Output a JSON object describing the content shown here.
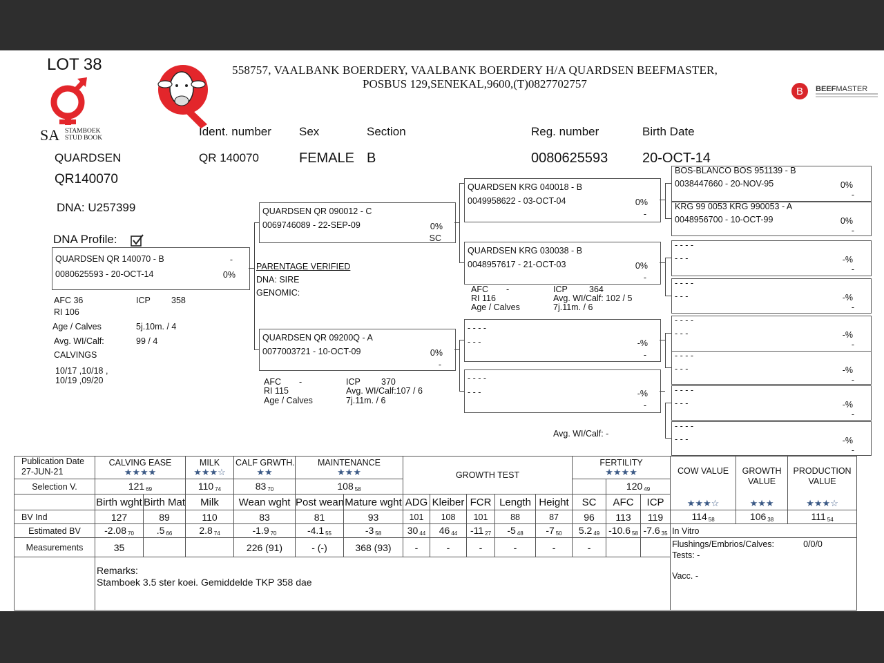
{
  "lot": "LOT 38",
  "logos": {
    "studbook": {
      "sa": "SA",
      "line1": "STAMBOEK",
      "line2": "STUD BOOK",
      "icon": "stud-book-symbol"
    },
    "breeder": {
      "letter": "Q",
      "icon": "cow-head"
    },
    "beefmaster": {
      "letter": "B",
      "text": "BEEFMASTER",
      "subtext": "CATTLE BREEDERS' SOCIETY OF SA"
    }
  },
  "breeder_header": {
    "line1": "558757,  VAALBANK BOERDERY, VAALBANK BOERDERY H/A QUARDSEN BEEFMASTER,",
    "line2": "POSBUS 129,SENEKAL,9600,(T)0827702757"
  },
  "animal": {
    "labels": {
      "ident": "Ident. number",
      "sex": "Sex",
      "section": "Section",
      "reg": "Reg. number",
      "birth": "Birth Date"
    },
    "prefix": "QUARDSEN",
    "name_code": "QR140070",
    "ident": "QR  140070",
    "sex": "FEMALE",
    "section": "B",
    "reg": "0080625593",
    "birth": "20-OCT-14",
    "dna": "DNA: U257399",
    "dna_profile_label": "DNA Profile:",
    "dna_profile_checked": true
  },
  "animal_info": {
    "afc": "AFC 36",
    "icp_label": "ICP",
    "icp": "358",
    "ri": "RI  106",
    "age_label": "Age / Calves",
    "age": "5j.10m. / 4",
    "wi_label": "Avg. WI/Calf:",
    "wi": "99 / 4",
    "calvings_label": "CALVINGS",
    "calvings1": "10/17 ,10/18 ,",
    "calvings2": "10/19 ,09/20"
  },
  "parentage": {
    "verified": "PARENTAGE VERIFIED",
    "dna": "DNA:  SIRE",
    "genomic": "GENOMIC:"
  },
  "pedigree": {
    "self": {
      "name": "QUARDSEN QR  140070 - B",
      "reg": "0080625593 -  20-OCT-14",
      "pct": "0%",
      "extra": "-"
    },
    "sire": {
      "name": "QUARDSEN QR  090012 - C",
      "reg": "0069746089 - 22-SEP-09",
      "pct": "0%",
      "extra": "SC"
    },
    "dam": {
      "name": "QUARDSEN QR  09200Q - A",
      "reg": "0077003721 - 10-OCT-09",
      "pct": "0%",
      "extra": "-"
    },
    "ss": {
      "name": "QUARDSEN KRG 040018 - B",
      "reg": "0049958622 - 03-OCT-04",
      "pct": "0%",
      "extra": "-"
    },
    "sd": {
      "name": "QUARDSEN KRG 030038 - B",
      "reg": "0048957617 - 21-OCT-03",
      "pct": "0%",
      "extra": "-"
    },
    "ds": {
      "name": "- - - -",
      "reg": "- - -",
      "pct": "-%",
      "extra": "-"
    },
    "dd": {
      "name": "- - - -",
      "reg": "- - -",
      "pct": "-%",
      "extra": "-"
    },
    "sss": {
      "name": "BOS-BLANCO BOS 951139 - B",
      "reg": "0038447660 - 20-NOV-95",
      "pct": "0%",
      "extra": "-"
    },
    "ssd": {
      "name": "KRG 99 0053 KRG 990053 - A",
      "reg": "0048956700 - 10-OCT-99",
      "pct": "0%",
      "extra": "-"
    },
    "sds": {
      "name": "- - - -",
      "reg": "- - -",
      "pct": "-%",
      "extra": "-"
    },
    "sdd": {
      "name": "- - - -",
      "reg": "- - -",
      "pct": "-%",
      "extra": "-"
    },
    "dss": {
      "name": "- - - -",
      "reg": "- - -",
      "pct": "-%",
      "extra": "-"
    },
    "dsd": {
      "name": "- - - -",
      "reg": "- - -",
      "pct": "-%",
      "extra": "-"
    },
    "dds": {
      "name": "- - - -",
      "reg": "- - -",
      "pct": "-%",
      "extra": "-"
    },
    "ddd": {
      "name": "- - - -",
      "reg": "- - -",
      "pct": "-%",
      "extra": "-"
    }
  },
  "dam_info": {
    "afc_label": "AFC",
    "afc": "-",
    "icp_label": "ICP",
    "icp": "370",
    "ri": "RI   115",
    "wi": "Avg. WI/Calf:107 / 6",
    "age_label": "Age / Calves",
    "age": "7j.11m. / 6"
  },
  "sd_info": {
    "afc_label": "AFC",
    "afc": "-",
    "icp_label": "ICP",
    "icp": "364",
    "ri": "RI      116",
    "wi": "Avg. WI/Calf:  102 / 5",
    "age_label": "Age / Calves",
    "age": "7j.11m. / 6"
  },
  "dd_info": {
    "wi": "Avg. WI/Calf:  -"
  },
  "star_color": "#3c5a86",
  "bv_table": {
    "pub_label": "Publication Date",
    "pub_date": "27-JUN-21",
    "groups": [
      {
        "label": "CALVING EASE",
        "stars": "★★★★"
      },
      {
        "label": "MILK",
        "stars": "★★★☆"
      },
      {
        "label": "CALF GRWTH.",
        "stars": "★★"
      },
      {
        "label": "MAINTENANCE",
        "stars": "★★★"
      },
      {
        "label": "GROWTH TEST",
        "stars": ""
      },
      {
        "label": "FERTILITY",
        "stars": "★★★★"
      }
    ],
    "values": [
      {
        "label": "COW VALUE",
        "stars": "★★★☆",
        "v": "114",
        "sub": "58"
      },
      {
        "label": "GROWTH VALUE",
        "stars": "★★★",
        "v": "106",
        "sub": "38"
      },
      {
        "label": "PRODUCTION VALUE",
        "stars": "★★★☆",
        "v": "111",
        "sub": "54"
      }
    ],
    "selection_label": "Selection V.",
    "selection": [
      {
        "v": "121",
        "sub": "69"
      },
      {
        "v": "110",
        "sub": "74"
      },
      {
        "v": "83",
        "sub": "70"
      },
      {
        "v": "108",
        "sub": "58"
      },
      {
        "v": "",
        "sub": ""
      },
      {
        "v": "120",
        "sub": "49"
      }
    ],
    "columns": [
      "Birth wght",
      "Birth Mat.",
      "Milk",
      "Wean wght",
      "Post wean",
      "Mature wght",
      "ADG",
      "Kleiber",
      "FCR",
      "Length",
      "Height",
      "SC",
      "AFC",
      "ICP"
    ],
    "bv_ind_label": "BV Ind",
    "bv_ind": [
      "127",
      "89",
      "110",
      "83",
      "81",
      "93",
      "101",
      "108",
      "101",
      "88",
      "87",
      "96",
      "113",
      "119"
    ],
    "est_label": "Estimated BV",
    "est": [
      {
        "v": "-2.08",
        "sub": "70"
      },
      {
        "v": ".5",
        "sub": "66"
      },
      {
        "v": "2.8",
        "sub": "74"
      },
      {
        "v": "-1.9",
        "sub": "70"
      },
      {
        "v": "-4.1",
        "sub": "55"
      },
      {
        "v": "-3",
        "sub": "58"
      },
      {
        "v": "30",
        "sub": "44"
      },
      {
        "v": "46",
        "sub": "44"
      },
      {
        "v": "-11",
        "sub": "27"
      },
      {
        "v": "-5",
        "sub": "48"
      },
      {
        "v": "-7",
        "sub": "50"
      },
      {
        "v": "5.2",
        "sub": "49"
      },
      {
        "v": "-10.6",
        "sub": "58"
      },
      {
        "v": "-7.6",
        "sub": "35"
      }
    ],
    "meas_label": "Measurements",
    "meas": [
      "35",
      "",
      "",
      "226  (91)",
      "-  (-)",
      "368  (93)",
      "-",
      "-",
      "-",
      "-",
      "-",
      "-",
      "",
      ""
    ],
    "in_vitro": "In Vitro",
    "flushings_label": "Flushings/Embrios/Calves:",
    "flushings": "0/0/0",
    "tests": "Tests: -",
    "vacc": "Vacc. -",
    "remarks_label": "Remarks:",
    "remarks": "Stamboek 3.5 ster koei. Gemiddelde TKP 358 dae"
  }
}
